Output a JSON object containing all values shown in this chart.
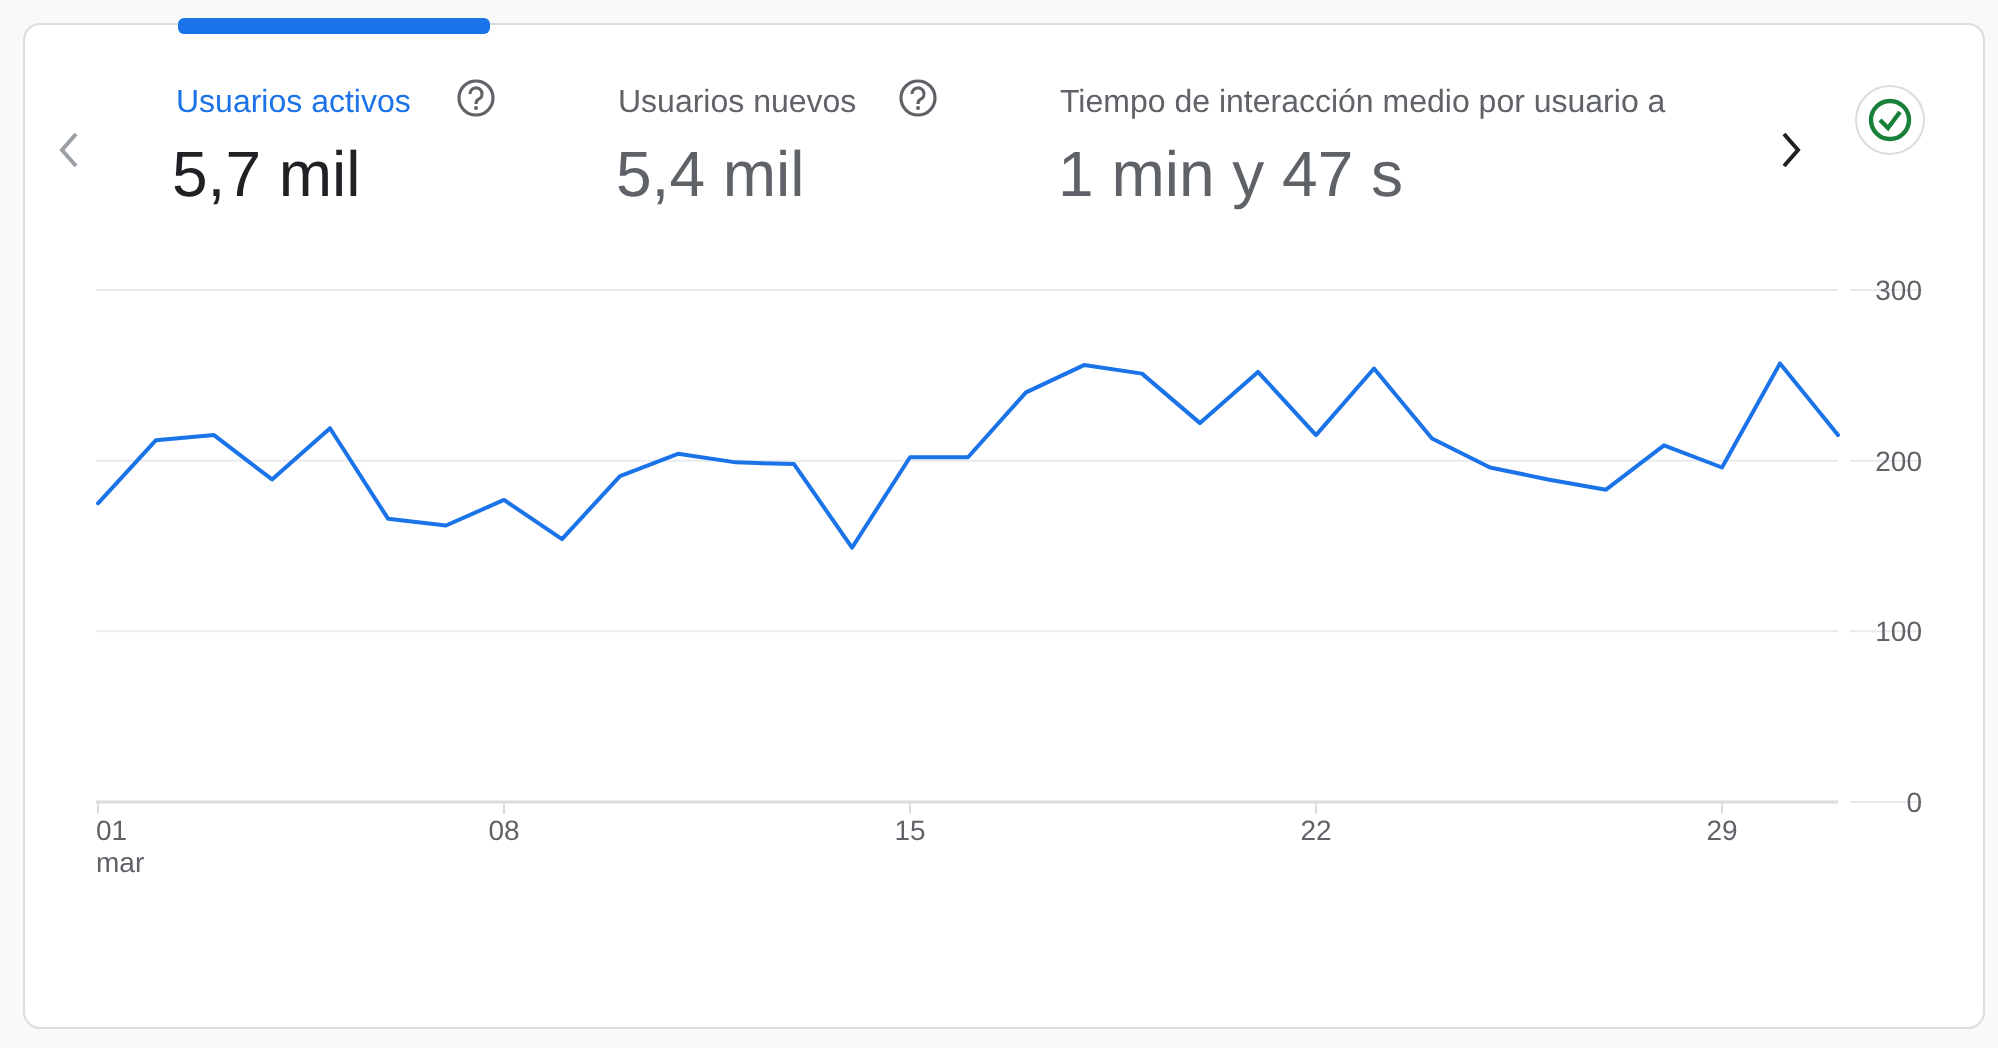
{
  "chart_data": {
    "type": "line",
    "title": "Usuarios activos",
    "subtitle": "5,7 mil",
    "annotations": [
      "Usuarios nuevos",
      "5,4 mil",
      "Tiempo de interacción medio por usuario a",
      "1 min y 47 s"
    ],
    "x": [
      1,
      2,
      3,
      4,
      5,
      6,
      7,
      8,
      9,
      10,
      11,
      12,
      13,
      14,
      15,
      16,
      17,
      18,
      19,
      20,
      21,
      22,
      23,
      24,
      25,
      26,
      27,
      28,
      29,
      30,
      31
    ],
    "series": [
      {
        "color": "#1a73e8",
        "values": [
          175,
          212,
          215,
          189,
          219,
          166,
          162,
          177,
          154,
          191,
          204,
          199,
          198,
          149,
          202,
          202,
          240,
          256,
          251,
          222,
          252,
          215,
          254,
          213,
          196,
          189,
          183,
          209,
          196,
          257,
          215
        ]
      }
    ],
    "xlim": [
      1,
      31
    ],
    "xticks": [
      {
        "value": 1,
        "label": "01\nmar"
      },
      {
        "value": 8,
        "label": "08"
      },
      {
        "value": 15,
        "label": "15"
      },
      {
        "value": 22,
        "label": "22"
      },
      {
        "value": 29,
        "label": "29"
      }
    ],
    "ylim": [
      0,
      300
    ],
    "yticks": [
      0,
      100,
      200,
      300
    ],
    "grid": "y",
    "marker": "none",
    "line_style": "solid"
  }
}
